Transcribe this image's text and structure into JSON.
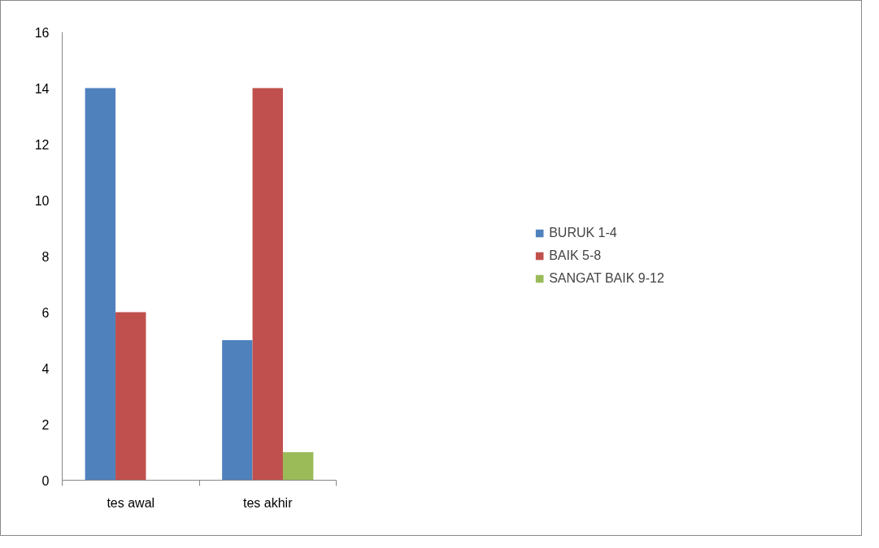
{
  "chart_data": {
    "type": "bar",
    "categories": [
      "tes awal",
      "tes akhir"
    ],
    "series": [
      {
        "name": "BURUK 1-4",
        "color": "#4f81bd",
        "values": [
          14,
          5
        ]
      },
      {
        "name": "BAIK 5-8",
        "color": "#c0504d",
        "values": [
          6,
          14
        ]
      },
      {
        "name": "SANGAT BAIK 9-12",
        "color": "#9bbb59",
        "values": [
          0,
          1
        ]
      }
    ],
    "ylim": [
      0,
      16
    ],
    "yticks": [
      0,
      2,
      4,
      6,
      8,
      10,
      12,
      14,
      16
    ],
    "grid": false,
    "legend": "right"
  }
}
